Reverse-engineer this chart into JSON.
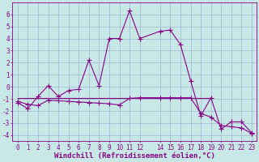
{
  "x_main": [
    0,
    1,
    2,
    3,
    4,
    5,
    6,
    7,
    8,
    9,
    10,
    11,
    12,
    14,
    15,
    16,
    17,
    18,
    19,
    20,
    21,
    22,
    23
  ],
  "y_main": [
    -1.3,
    -1.8,
    -0.8,
    0.1,
    -0.8,
    -0.3,
    -0.2,
    2.2,
    0.1,
    4.0,
    4.0,
    6.3,
    4.0,
    4.6,
    4.7,
    3.5,
    0.5,
    -2.4,
    -0.9,
    -3.5,
    -2.9,
    -2.9,
    -3.8
  ],
  "x_trend": [
    0,
    1,
    2,
    3,
    4,
    5,
    6,
    7,
    8,
    9,
    10,
    11,
    12,
    14,
    15,
    16,
    17,
    18,
    19,
    20,
    21,
    22,
    23
  ],
  "y_trend": [
    -1.2,
    -1.45,
    -1.55,
    -1.1,
    -1.15,
    -1.2,
    -1.25,
    -1.3,
    -1.35,
    -1.4,
    -1.5,
    -0.95,
    -0.9,
    -0.9,
    -0.9,
    -0.9,
    -0.9,
    -2.2,
    -2.5,
    -3.2,
    -3.3,
    -3.4,
    -3.85
  ],
  "x_flat": [
    0,
    1,
    2,
    3,
    4,
    5,
    6,
    7,
    8,
    9,
    10,
    11,
    12,
    14,
    15,
    16,
    17,
    18,
    19
  ],
  "y_flat": [
    -0.9,
    -0.9,
    -0.9,
    -0.9,
    -0.9,
    -0.9,
    -0.9,
    -0.9,
    -0.9,
    -0.9,
    -0.9,
    -0.9,
    -0.9,
    -0.9,
    -0.9,
    -0.9,
    -0.9,
    -0.9,
    -0.9
  ],
  "line_color": "#880088",
  "marker": "+",
  "marker_size": 4,
  "lw": 0.8,
  "bg_color": "#c8e8e8",
  "grid_color": "#99aacc",
  "xlabel": "Windchill (Refroidissement éolien,°C)",
  "ylim": [
    -4.5,
    7.0
  ],
  "xlim": [
    -0.5,
    23.5
  ],
  "yticks": [
    -4,
    -3,
    -2,
    -1,
    0,
    1,
    2,
    3,
    4,
    5,
    6
  ],
  "xticks": [
    0,
    1,
    2,
    3,
    4,
    5,
    6,
    7,
    8,
    9,
    10,
    11,
    12,
    14,
    15,
    16,
    17,
    18,
    19,
    20,
    21,
    22,
    23
  ],
  "tick_fs": 5.5,
  "xlabel_fs": 6.5
}
